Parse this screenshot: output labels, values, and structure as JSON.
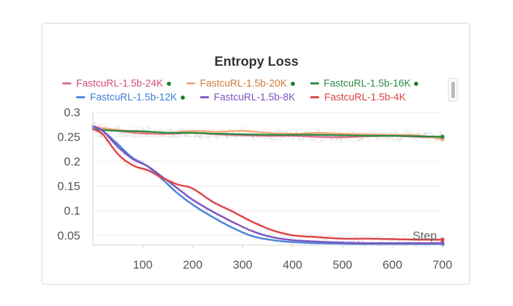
{
  "chart_data": {
    "type": "line",
    "title": "Entropy Loss",
    "xlabel": "Step",
    "ylabel": "",
    "xlim": [
      0,
      700
    ],
    "ylim": [
      0.03,
      0.3
    ],
    "xticks": [
      100,
      200,
      300,
      400,
      500,
      600,
      700
    ],
    "xtick_labels": [
      "100",
      "200",
      "300",
      "400",
      "500",
      "600",
      "700"
    ],
    "yticks": [
      0.05,
      0.1,
      0.15,
      0.2,
      0.25,
      0.3
    ],
    "ytick_labels": [
      "0.05",
      "0.1",
      "0.15",
      "0.2",
      "0.25",
      "0.3"
    ],
    "grid": true,
    "legend_position": "top",
    "series": [
      {
        "name": "FastcuRL-1.5b-24K",
        "color": "#e06c8c",
        "marked": true,
        "x": [
          0,
          50,
          100,
          150,
          200,
          250,
          300,
          350,
          400,
          450,
          500,
          550,
          600,
          650,
          700
        ],
        "y": [
          0.268,
          0.262,
          0.257,
          0.256,
          0.258,
          0.255,
          0.253,
          0.252,
          0.252,
          0.25,
          0.249,
          0.251,
          0.252,
          0.25,
          0.248
        ]
      },
      {
        "name": "FastcuRL-1.5b-20K",
        "color": "#f2a97a",
        "marked": true,
        "x": [
          0,
          50,
          100,
          150,
          200,
          250,
          300,
          350,
          400,
          450,
          500,
          550,
          600,
          650,
          700
        ],
        "y": [
          0.27,
          0.264,
          0.26,
          0.258,
          0.262,
          0.26,
          0.262,
          0.258,
          0.256,
          0.258,
          0.256,
          0.255,
          0.254,
          0.253,
          0.245
        ]
      },
      {
        "name": "FastcuRL-1.5b-16K",
        "color": "#2e8b46",
        "marked": true,
        "x": [
          0,
          50,
          100,
          150,
          200,
          250,
          300,
          350,
          400,
          450,
          500,
          550,
          600,
          650,
          700
        ],
        "y": [
          0.265,
          0.262,
          0.261,
          0.258,
          0.258,
          0.256,
          0.255,
          0.254,
          0.254,
          0.254,
          0.253,
          0.252,
          0.252,
          0.251,
          0.25
        ]
      },
      {
        "name": "FastcuRL-1.5b-12K",
        "color": "#4a86d8",
        "marked": true,
        "x": [
          0,
          20,
          50,
          80,
          110,
          140,
          170,
          200,
          240,
          280,
          320,
          360,
          400,
          450,
          500,
          550,
          600,
          650,
          700
        ],
        "y": [
          0.27,
          0.262,
          0.235,
          0.207,
          0.19,
          0.163,
          0.135,
          0.112,
          0.087,
          0.065,
          0.048,
          0.04,
          0.036,
          0.034,
          0.033,
          0.032,
          0.032,
          0.032,
          0.032
        ]
      },
      {
        "name": "FastcuRL-1.5b-8K",
        "color": "#7d55c0",
        "marked": false,
        "x": [
          0,
          20,
          50,
          80,
          110,
          140,
          170,
          200,
          240,
          280,
          320,
          360,
          400,
          450,
          500,
          550,
          600,
          650,
          700
        ],
        "y": [
          0.272,
          0.262,
          0.23,
          0.205,
          0.19,
          0.168,
          0.145,
          0.122,
          0.098,
          0.077,
          0.058,
          0.046,
          0.04,
          0.037,
          0.035,
          0.034,
          0.034,
          0.034,
          0.034
        ]
      },
      {
        "name": "FastcuRL-1.5b-4K",
        "color": "#d94444",
        "marked": false,
        "x": [
          0,
          20,
          50,
          80,
          110,
          140,
          170,
          200,
          240,
          280,
          320,
          360,
          400,
          450,
          500,
          550,
          600,
          650,
          700
        ],
        "y": [
          0.266,
          0.255,
          0.215,
          0.192,
          0.182,
          0.166,
          0.153,
          0.145,
          0.118,
          0.098,
          0.077,
          0.06,
          0.05,
          0.046,
          0.043,
          0.043,
          0.042,
          0.041,
          0.041
        ]
      }
    ]
  }
}
